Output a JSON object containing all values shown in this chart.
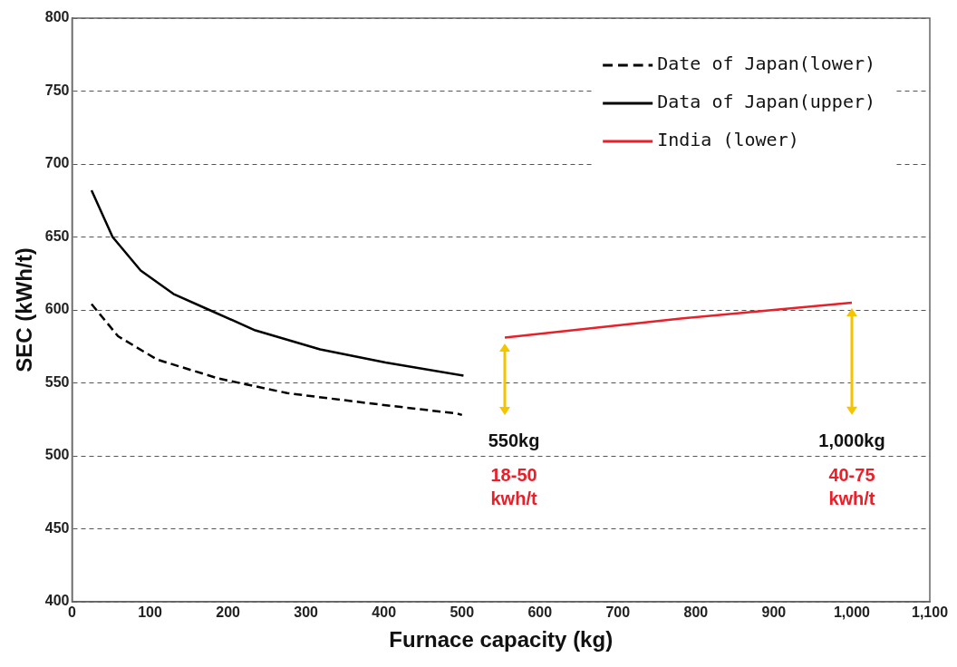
{
  "chart_data": {
    "type": "line",
    "xlabel": "Furnace capacity (kg)",
    "ylabel": "SEC (kWh/t)",
    "xlim": [
      0,
      1100
    ],
    "xticks": [
      0,
      100,
      200,
      300,
      400,
      500,
      600,
      700,
      800,
      900,
      {
        "value": 1000,
        "label": "1,000"
      },
      {
        "value": 1100,
        "label": "1,100"
      }
    ],
    "ylim": [
      400,
      800
    ],
    "yticks": [
      400,
      450,
      500,
      550,
      600,
      650,
      700,
      750,
      800
    ],
    "grid": "y",
    "legend": "top right",
    "marker": "none",
    "series": [
      {
        "name": "Date of Japan(lower)",
        "color": "#000000",
        "line_style": "dashed",
        "x": [
          25,
          59,
          109,
          188,
          276,
          381,
          494,
          500
        ],
        "values": [
          604,
          582,
          566,
          553,
          543,
          536,
          529,
          528
        ]
      },
      {
        "name": "Data of Japan(upper)",
        "color": "#000000",
        "line_style": "solid",
        "x": [
          25,
          52,
          88,
          130,
          176,
          235,
          318,
          402,
          502
        ],
        "values": [
          682,
          650,
          627,
          611,
          600,
          586,
          573,
          564,
          555
        ]
      },
      {
        "name": "India (lower)",
        "color": "#e8202a",
        "line_style": "solid",
        "x": [
          555,
          778,
          1000
        ],
        "values": [
          581,
          594,
          605
        ]
      }
    ],
    "annotations": [
      "550kg",
      "18-50 kwh/t",
      "1,000kg",
      "40-75 kwh/t"
    ]
  }
}
